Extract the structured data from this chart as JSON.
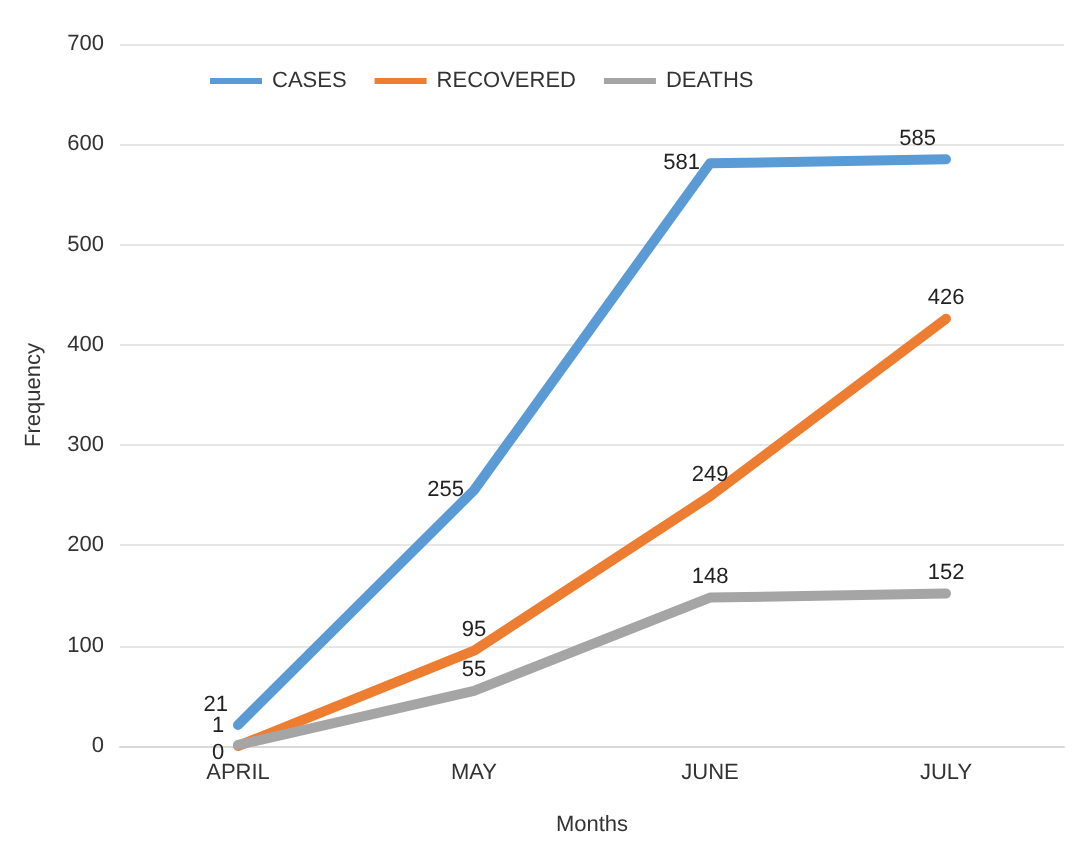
{
  "chart_data": {
    "type": "line",
    "xlabel": "Months",
    "ylabel": "Frequency",
    "categories": [
      "APRIL",
      "MAY",
      "JUNE",
      "JULY"
    ],
    "series": [
      {
        "name": "CASES",
        "color": "#5b9bd5",
        "values": [
          21,
          255,
          581,
          585
        ]
      },
      {
        "name": "RECOVERED",
        "color": "#ed7d31",
        "values": [
          0,
          95,
          249,
          426
        ]
      },
      {
        "name": "DEATHS",
        "color": "#a5a5a5",
        "values": [
          1,
          55,
          148,
          152
        ]
      }
    ],
    "ylim": [
      0,
      700
    ],
    "yticks": [
      0,
      100,
      200,
      300,
      400,
      500,
      600,
      700
    ],
    "grid": "y",
    "legend": "top left",
    "marker": "none",
    "line_style": "solid",
    "data_labels": true
  }
}
